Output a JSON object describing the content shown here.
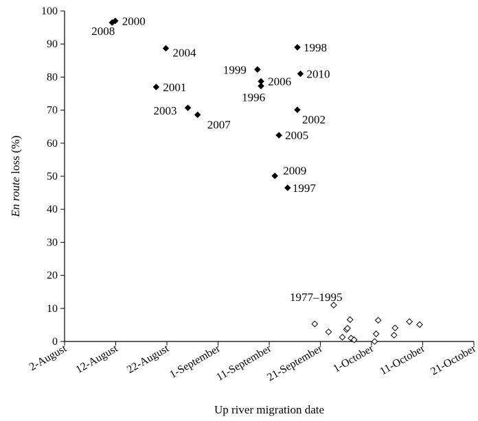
{
  "chart_data": {
    "type": "scatter",
    "xlabel": "Up river migration date",
    "ylabel_italic": "En route",
    "ylabel_rest": " loss (%)",
    "ylim": [
      0,
      100
    ],
    "yticks": [
      0,
      10,
      20,
      30,
      40,
      50,
      60,
      70,
      80,
      90,
      100
    ],
    "xaxis_note": "date axis; tick every 10 days, year not printed",
    "xticks": [
      {
        "day": 0,
        "label": "2-August"
      },
      {
        "day": 10,
        "label": "12-August"
      },
      {
        "day": 20,
        "label": "22-August"
      },
      {
        "day": 30,
        "label": "1-September"
      },
      {
        "day": 40,
        "label": "11-September"
      },
      {
        "day": 50,
        "label": "21-September"
      },
      {
        "day": 60,
        "label": "1-October"
      },
      {
        "day": 70,
        "label": "11-October"
      },
      {
        "day": 80,
        "label": "21-October"
      }
    ],
    "series": [
      {
        "marker": "filled-diamond",
        "color": "#000000",
        "points": [
          {
            "day": 9.3,
            "y": 96.5,
            "label": "2008"
          },
          {
            "day": 9.9,
            "y": 97.0,
            "label": "2000"
          },
          {
            "day": 19.8,
            "y": 88.7,
            "label": "2004"
          },
          {
            "day": 17.9,
            "y": 77.0,
            "label": "2001"
          },
          {
            "day": 24.1,
            "y": 70.7,
            "label": "2003"
          },
          {
            "day": 26.0,
            "y": 68.6,
            "label": "2007"
          },
          {
            "day": 37.7,
            "y": 82.3,
            "label": "1999"
          },
          {
            "day": 38.4,
            "y": 78.7,
            "label": "2006"
          },
          {
            "day": 38.4,
            "y": 77.3,
            "label": "1996"
          },
          {
            "day": 41.9,
            "y": 62.4,
            "label": "2005"
          },
          {
            "day": 45.5,
            "y": 89.0,
            "label": "1998"
          },
          {
            "day": 46.1,
            "y": 81.0,
            "label": "2010"
          },
          {
            "day": 45.5,
            "y": 70.1,
            "label": "2002"
          },
          {
            "day": 41.1,
            "y": 50.1,
            "label": "2009"
          },
          {
            "day": 43.6,
            "y": 46.5,
            "label": "1997"
          }
        ]
      },
      {
        "marker": "open-diamond",
        "color": "#000000",
        "range_label": "1977–1995",
        "points": [
          {
            "day": 52.6,
            "y": 11.0
          },
          {
            "day": 48.9,
            "y": 5.3
          },
          {
            "day": 51.6,
            "y": 2.9
          },
          {
            "day": 54.3,
            "y": 1.3
          },
          {
            "day": 55.1,
            "y": 3.6
          },
          {
            "day": 55.3,
            "y": 4.0
          },
          {
            "day": 55.8,
            "y": 6.6
          },
          {
            "day": 56.0,
            "y": 1.0
          },
          {
            "day": 56.6,
            "y": 0.5
          },
          {
            "day": 60.6,
            "y": 0.0
          },
          {
            "day": 60.9,
            "y": 2.3
          },
          {
            "day": 61.3,
            "y": 6.4
          },
          {
            "day": 64.4,
            "y": 1.9
          },
          {
            "day": 64.6,
            "y": 4.1
          },
          {
            "day": 67.4,
            "y": 6.0
          },
          {
            "day": 69.4,
            "y": 5.1
          }
        ]
      }
    ]
  }
}
